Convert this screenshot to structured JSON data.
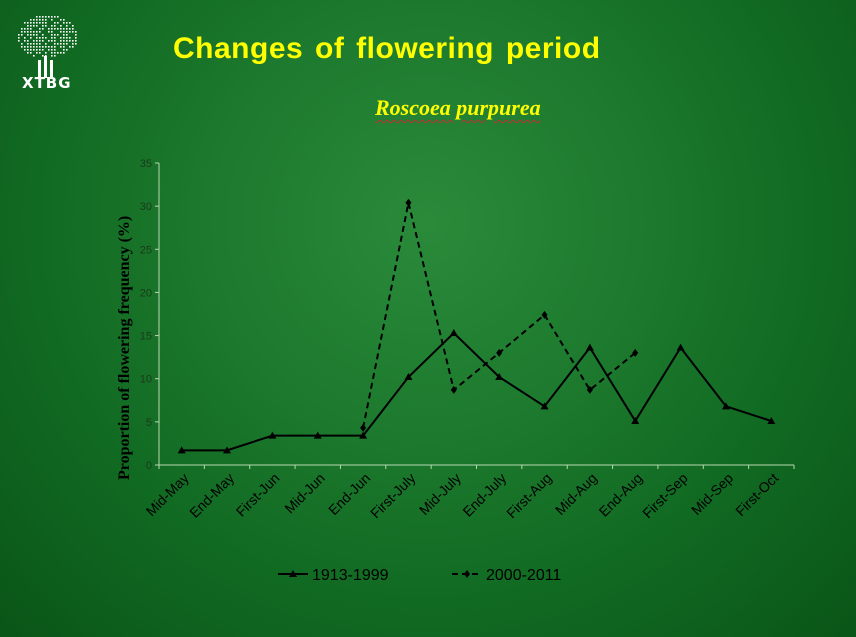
{
  "logo": {
    "text": "XTBG"
  },
  "header": {
    "title": "Changes of flowering period",
    "subtitle": "Roscoea purpurea"
  },
  "chart_data": {
    "type": "line",
    "title": "Changes of flowering period",
    "subtitle": "Roscoea purpurea",
    "xlabel": "",
    "ylabel": "Proportion of flowering frequency (%)",
    "ylim": [
      0,
      35
    ],
    "yticks": [
      0,
      5,
      10,
      15,
      20,
      25,
      30,
      35
    ],
    "categories": [
      "Mid-May",
      "End-May",
      "First-Jun",
      "Mid-Jun",
      "End-Jun",
      "First-July",
      "Mid-July",
      "End-July",
      "First-Aug",
      "Mid-Aug",
      "End-Aug",
      "First-Sep",
      "Mid-Sep",
      "First-Oct"
    ],
    "series": [
      {
        "name": "1913-1999",
        "style": "solid",
        "marker": "triangle",
        "values": [
          1.7,
          1.7,
          3.4,
          3.4,
          3.4,
          10.2,
          15.3,
          10.2,
          6.8,
          13.6,
          5.1,
          13.6,
          6.8,
          5.1
        ]
      },
      {
        "name": "2000-2011",
        "style": "dashed",
        "marker": "diamond",
        "values": [
          null,
          null,
          null,
          null,
          4.3,
          30.4,
          8.7,
          13.0,
          17.4,
          8.7,
          13.0,
          null,
          null,
          null
        ]
      }
    ],
    "grid": false,
    "legend": "bottom"
  }
}
